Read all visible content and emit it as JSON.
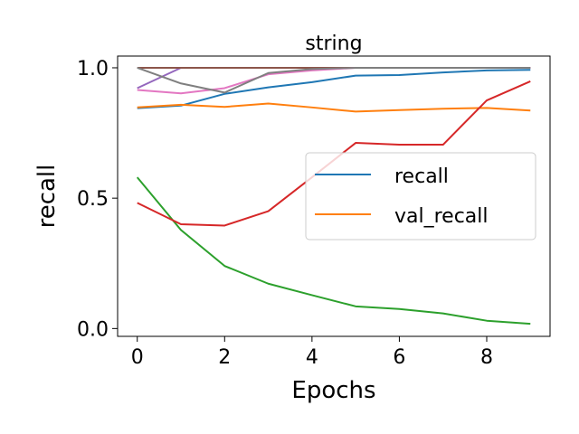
{
  "chart_data": {
    "type": "line",
    "title": "string",
    "xlabel": "Epochs",
    "ylabel": "recall",
    "xlim": [
      -0.45,
      9.45
    ],
    "ylim": [
      -0.03,
      1.045
    ],
    "xticks": [
      0,
      2,
      4,
      6,
      8
    ],
    "xtick_labels": [
      "0",
      "2",
      "4",
      "6",
      "8"
    ],
    "yticks": [
      0.0,
      0.5,
      1.0
    ],
    "ytick_labels": [
      "0.0",
      "0.5",
      "1.0"
    ],
    "grid": false,
    "legend": {
      "placement": "center-right",
      "entries": [
        "recall",
        "val_recall"
      ]
    },
    "x": [
      0,
      1,
      2,
      3,
      4,
      5,
      6,
      7,
      8,
      9
    ],
    "series": [
      {
        "name": "recall",
        "color": "#1f77b4",
        "values": [
          0.845,
          0.855,
          0.9,
          0.925,
          0.945,
          0.97,
          0.972,
          0.982,
          0.99,
          0.992
        ]
      },
      {
        "name": "val_recall",
        "color": "#ff7f0e",
        "values": [
          0.848,
          0.858,
          0.85,
          0.863,
          0.848,
          0.832,
          0.838,
          0.843,
          0.846,
          0.836
        ]
      },
      {
        "color": "#2ca02c",
        "values": [
          0.58,
          0.378,
          0.24,
          0.172,
          0.128,
          0.085,
          0.075,
          0.058,
          0.03,
          0.018
        ]
      },
      {
        "color": "#d62728",
        "values": [
          0.482,
          0.4,
          0.395,
          0.45,
          0.58,
          0.712,
          0.705,
          0.705,
          0.875,
          0.948
        ]
      },
      {
        "color": "#9467bd",
        "values": [
          0.922,
          1.0,
          1.0,
          1.0,
          1.0,
          1.0,
          1.0,
          1.0,
          1.0,
          1.0
        ]
      },
      {
        "color": "#8c564b",
        "values": [
          1.0,
          1.0,
          1.0,
          1.0,
          1.0,
          1.0,
          1.0,
          1.0,
          1.0,
          1.0
        ]
      },
      {
        "color": "#e377c2",
        "values": [
          0.915,
          0.902,
          0.922,
          0.975,
          0.99,
          1.0,
          1.0,
          1.0,
          1.0,
          1.0
        ]
      },
      {
        "color": "#7f7f7f",
        "values": [
          1.0,
          0.94,
          0.905,
          0.98,
          0.995,
          1.0,
          1.0,
          1.0,
          1.0,
          1.0
        ]
      }
    ]
  }
}
